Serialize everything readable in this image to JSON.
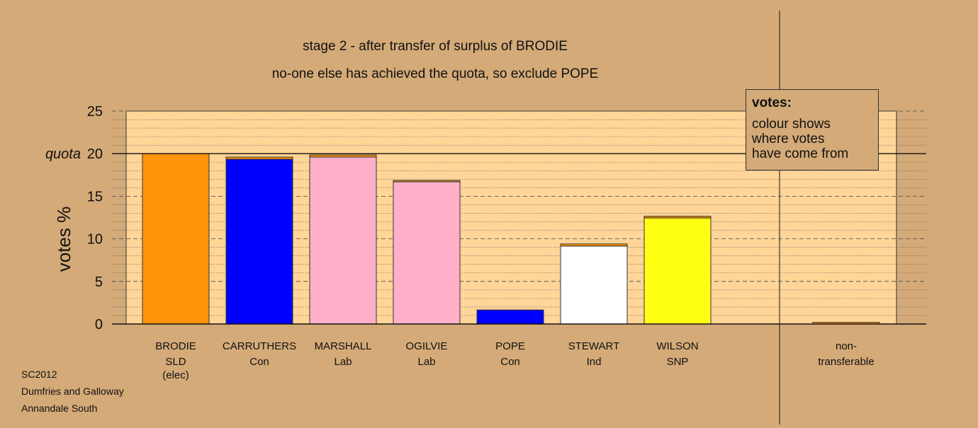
{
  "chart_data": {
    "type": "bar",
    "title": "stage 2 - after transfer of surplus of BRODIE",
    "subtitle": "no-one else has achieved the quota, so exclude POPE",
    "ylabel": "votes %",
    "ylim": [
      0,
      25
    ],
    "yticks": [
      "0",
      "5",
      "10",
      "15",
      "20",
      "25"
    ],
    "quota_value": 20,
    "quota_label": "quota",
    "categories": [
      {
        "name": "BRODIE",
        "party": "SLD",
        "note": "(elec)",
        "value": 20.0,
        "transfer": 0.0,
        "color": "#ff9408"
      },
      {
        "name": "CARRUTHERS",
        "party": "Con",
        "note": "",
        "value": 19.35,
        "transfer": 0.25,
        "color": "#0000ff"
      },
      {
        "name": "MARSHALL",
        "party": "Lab",
        "note": "",
        "value": 19.6,
        "transfer": 0.25,
        "color": "#ffb0c8"
      },
      {
        "name": "OGILVIE",
        "party": "Lab",
        "note": "",
        "value": 16.7,
        "transfer": 0.15,
        "color": "#ffb0c8"
      },
      {
        "name": "POPE",
        "party": "Con",
        "note": "",
        "value": 1.65,
        "transfer": 0.0,
        "color": "#0000ff"
      },
      {
        "name": "STEWART",
        "party": "Ind",
        "note": "",
        "value": 9.15,
        "transfer": 0.25,
        "color": "#ffffff"
      },
      {
        "name": "WILSON",
        "party": "SNP",
        "note": "",
        "value": 12.45,
        "transfer": 0.2,
        "color": "#ffff14"
      }
    ],
    "nontransferable": {
      "name": "non-",
      "name2": "transferable",
      "value": 0.2,
      "color": "#ff9408"
    },
    "transfer_color": "#ff9408",
    "legend_title": "votes:",
    "legend_lines": [
      "colour shows",
      "where votes",
      "have come from"
    ],
    "grid": true,
    "plot_bg": "#ffd598",
    "page_bg": "#d4aa78"
  },
  "footer": [
    "SC2012",
    "Dumfries and Galloway",
    "Annandale South"
  ]
}
